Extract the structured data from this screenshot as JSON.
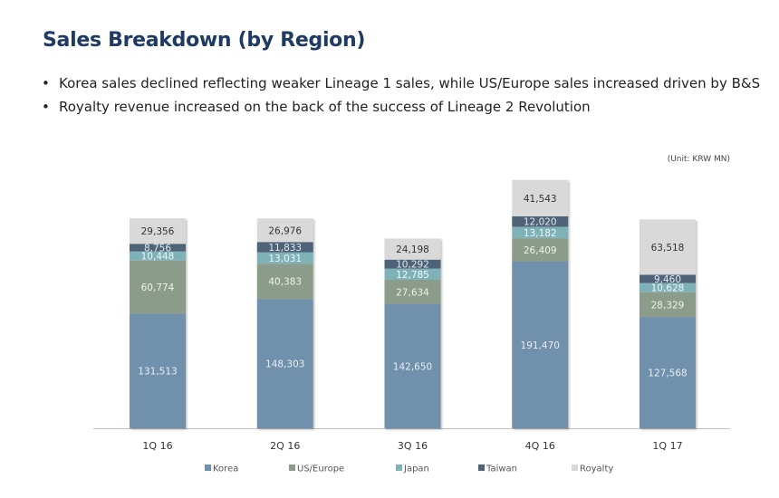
{
  "title": "Sales Breakdown (by Region)",
  "bullets": [
    "Korea sales declined reflecting weaker Lineage 1 sales, while US/Europe sales increased driven by B&S",
    "Royalty revenue increased on the back of the success of Lineage 2 Revolution"
  ],
  "unit": "(Unit: KRW MN)",
  "chart_data": {
    "type": "bar",
    "stacked": true,
    "categories": [
      "1Q 16",
      "2Q 16",
      "3Q 16",
      "4Q 16",
      "1Q 17"
    ],
    "series": [
      {
        "name": "Korea",
        "color": "#7090ab",
        "label_color": "#e8eef4",
        "values": [
          131513,
          148303,
          142650,
          191470,
          127568
        ]
      },
      {
        "name": "US/Europe",
        "color": "#8c9c8a",
        "label_color": "#eef2e8",
        "values": [
          60774,
          40383,
          27634,
          26409,
          28329
        ]
      },
      {
        "name": "Japan",
        "color": "#7fb2b8",
        "label_color": "#eef7f8",
        "values": [
          10448,
          13031,
          12785,
          13182,
          10628
        ]
      },
      {
        "name": "Taiwan",
        "color": "#4f6478",
        "label_color": "#dfe6ee",
        "values": [
          8756,
          11833,
          10292,
          12020,
          9460
        ]
      },
      {
        "name": "Royalty",
        "color": "#d9d9d9",
        "label_color": "#333333",
        "values": [
          29356,
          26976,
          24198,
          41543,
          63518
        ]
      }
    ],
    "ylim": [
      0,
      300000
    ],
    "legend": "bottom",
    "grid": false
  }
}
